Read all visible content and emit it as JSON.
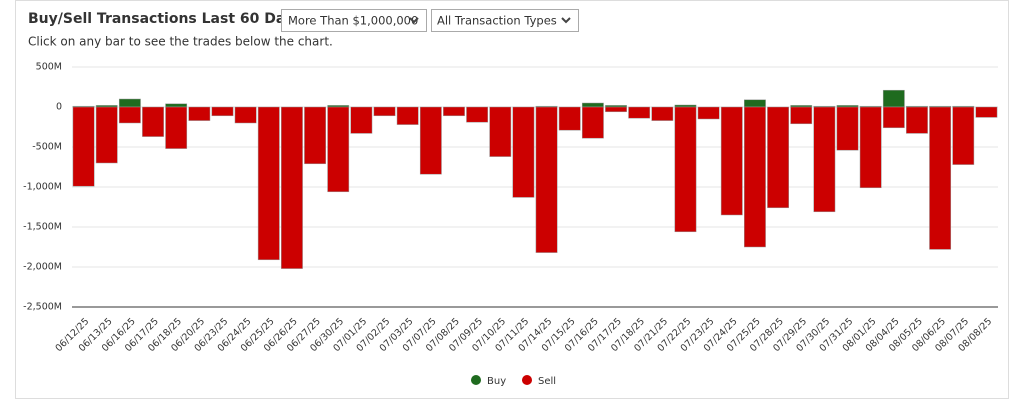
{
  "controls": [
    "More Than $1,000,000",
    "All Transaction Types"
  ],
  "chart_data": {
    "type": "bar",
    "title": "Buy/Sell Transactions Last 60 Days",
    "subtitle": "Click on any bar to see the trades below the chart.",
    "categories": [
      "06/12/25",
      "06/13/25",
      "06/16/25",
      "06/17/25",
      "06/18/25",
      "06/20/25",
      "06/23/25",
      "06/24/25",
      "06/25/25",
      "06/26/25",
      "06/27/25",
      "06/30/25",
      "07/01/25",
      "07/02/25",
      "07/03/25",
      "07/07/25",
      "07/08/25",
      "07/09/25",
      "07/10/25",
      "07/11/25",
      "07/14/25",
      "07/15/25",
      "07/16/25",
      "07/17/25",
      "07/18/25",
      "07/21/25",
      "07/22/25",
      "07/23/25",
      "07/24/25",
      "07/25/25",
      "07/28/25",
      "07/29/25",
      "07/30/25",
      "07/31/25",
      "08/01/25",
      "08/04/25",
      "08/05/25",
      "08/06/25",
      "08/07/25",
      "08/08/25"
    ],
    "series": [
      {
        "name": "Buy",
        "color": "#1f6b1f",
        "values": [
          10,
          20,
          100,
          0,
          40,
          0,
          0,
          0,
          0,
          0,
          0,
          20,
          0,
          0,
          0,
          0,
          0,
          0,
          0,
          0,
          10,
          0,
          50,
          20,
          0,
          0,
          25,
          0,
          0,
          90,
          0,
          20,
          10,
          20,
          10,
          210,
          10,
          10,
          10,
          0
        ]
      },
      {
        "name": "Sell",
        "color": "#cc0000",
        "values": [
          -990,
          -700,
          -200,
          -370,
          -520,
          -170,
          -110,
          -200,
          -1910,
          -2020,
          -710,
          -1060,
          -330,
          -110,
          -220,
          -840,
          -110,
          -190,
          -620,
          -1130,
          -1820,
          -290,
          -390,
          -60,
          -140,
          -170,
          -1560,
          -150,
          -1350,
          -1750,
          -1260,
          -210,
          -1310,
          -540,
          -1010,
          -260,
          -330,
          -1780,
          -720,
          -130
        ]
      }
    ],
    "ylim": [
      -2500,
      500
    ],
    "yticks": [
      {
        "value": 500,
        "label": "500M"
      },
      0,
      {
        "value": -500,
        "label": "-500M"
      },
      {
        "value": -1000,
        "label": "-1,000M"
      },
      {
        "value": -1500,
        "label": "-1,500M"
      },
      {
        "value": -2000,
        "label": "-2,000M"
      },
      {
        "value": -2500,
        "label": "-2,500M"
      }
    ],
    "grid": true,
    "legend": "bottom"
  }
}
